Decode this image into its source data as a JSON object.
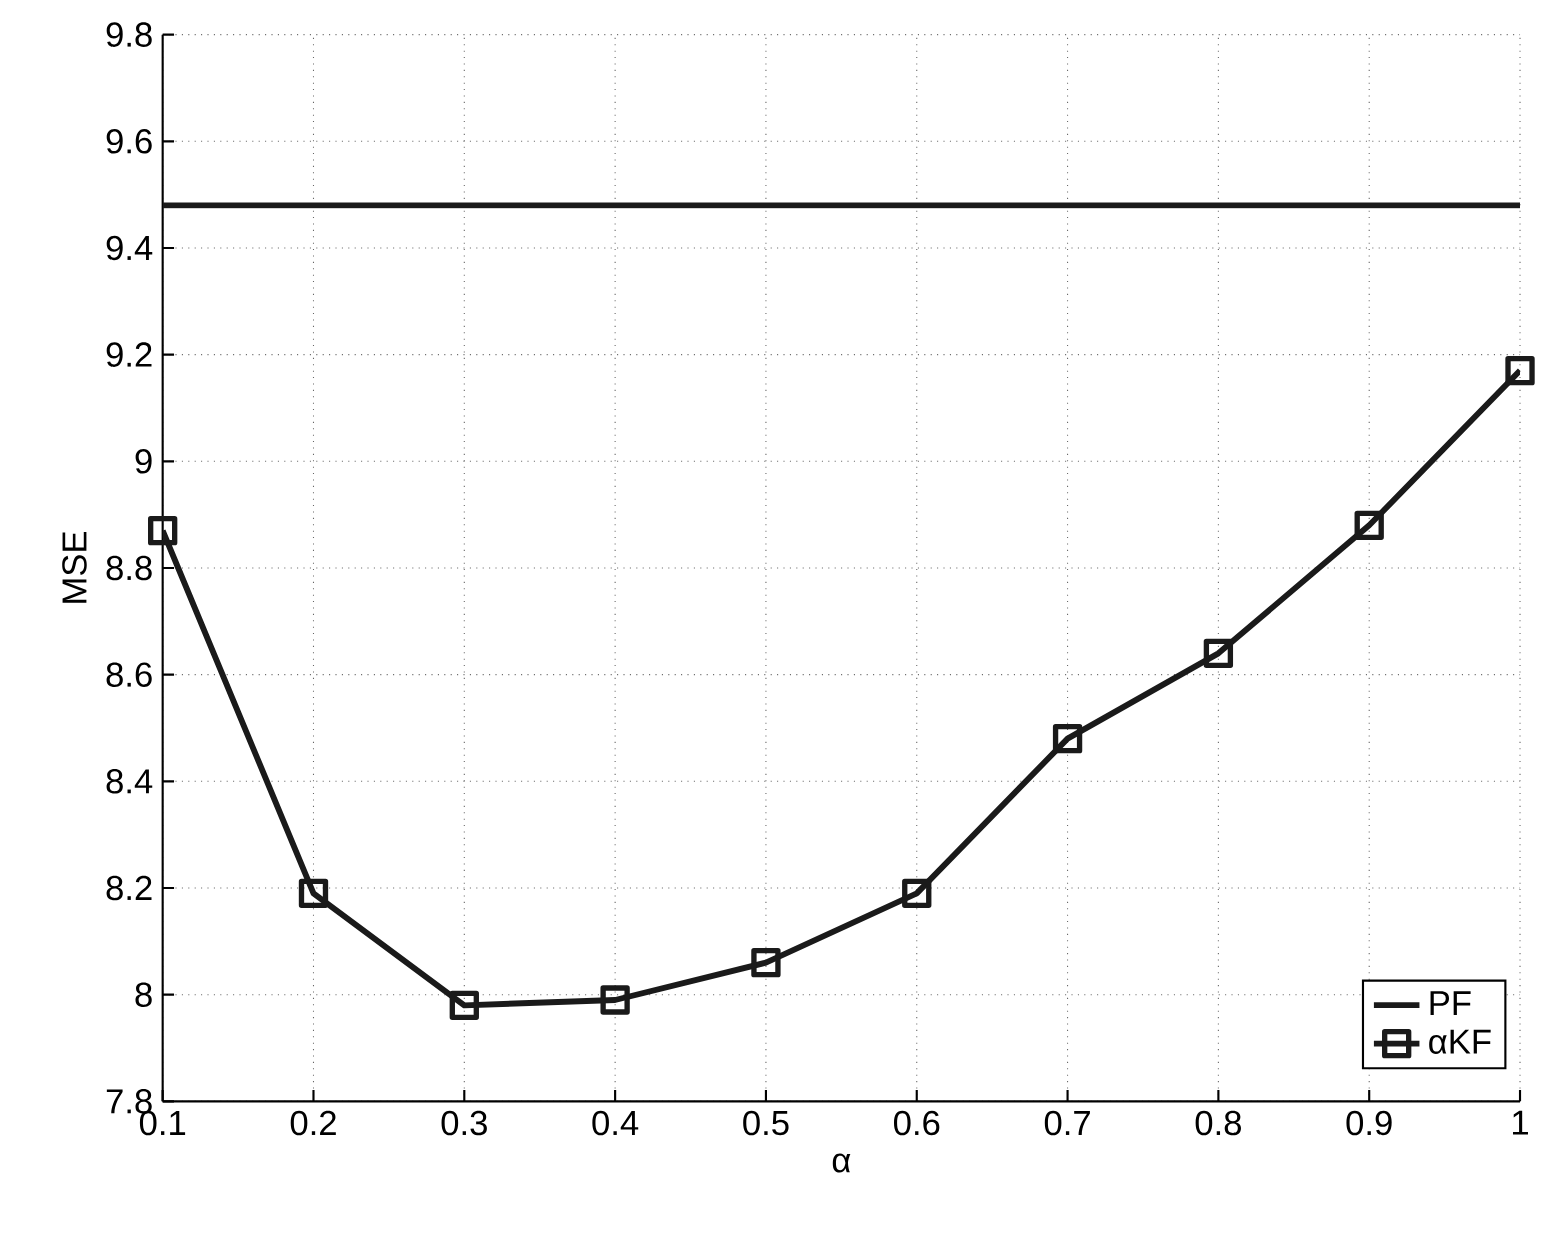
{
  "chart_data": {
    "type": "line",
    "xlabel": "α",
    "ylabel": "MSE",
    "xlim": [
      0.1,
      1
    ],
    "xticks": [
      0.1,
      0.2,
      0.3,
      0.4,
      0.5,
      0.6,
      0.7,
      0.8,
      0.9,
      1
    ],
    "ylim": [
      7.8,
      9.8
    ],
    "yticks": [
      7.8,
      8,
      8.2,
      8.4,
      8.6,
      8.8,
      9,
      9.2,
      9.4,
      9.6,
      9.8
    ],
    "grid": true,
    "legend": "bottom right",
    "line_style": "solid",
    "series": [
      {
        "name": "PF",
        "color": "#1a1a1a",
        "marker": "none",
        "x": [
          0.1,
          1
        ],
        "values": [
          9.48,
          9.48
        ]
      },
      {
        "name": "αKF",
        "color": "#1a1a1a",
        "marker": "square",
        "x": [
          0.1,
          0.2,
          0.3,
          0.4,
          0.5,
          0.6,
          0.7,
          0.8,
          0.9,
          1
        ],
        "values": [
          8.87,
          8.19,
          7.98,
          7.99,
          8.06,
          8.19,
          8.48,
          8.64,
          8.88,
          9.17
        ]
      }
    ]
  }
}
